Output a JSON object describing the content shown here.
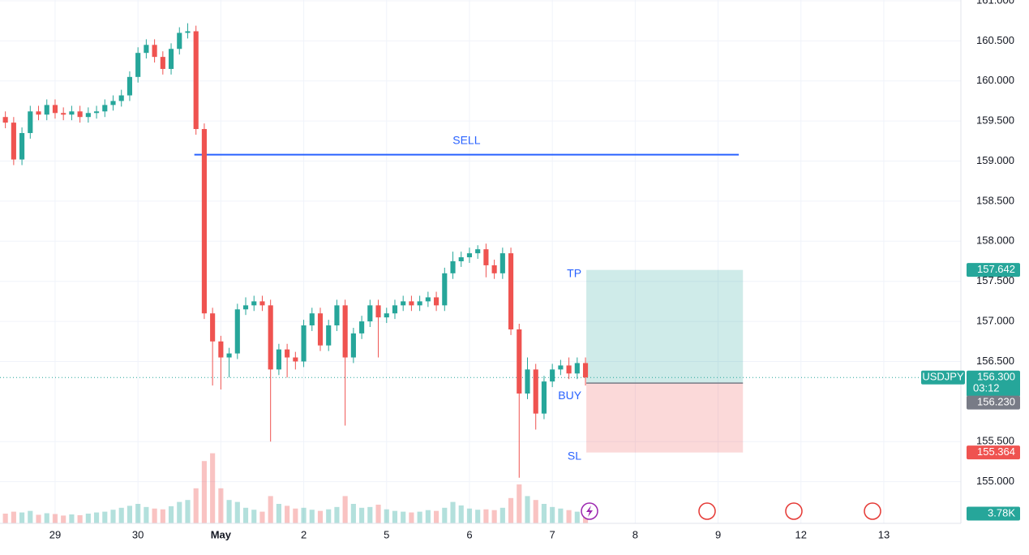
{
  "chart_data": {
    "type": "candlestick",
    "x": [
      -0.6,
      -0.5,
      -0.4,
      -0.3,
      -0.2,
      -0.1,
      0.0,
      0.1,
      0.2,
      0.3,
      0.4,
      0.5,
      0.6,
      0.7,
      0.8,
      0.9,
      1.0,
      1.1,
      1.2,
      1.3,
      1.4,
      1.5,
      1.6,
      1.7,
      1.8,
      1.9,
      2.0,
      2.1,
      2.2,
      2.3,
      2.4,
      2.5,
      2.6,
      2.7,
      2.8,
      2.9,
      3.0,
      3.1,
      3.2,
      3.3,
      3.4,
      3.5,
      3.6,
      3.7,
      3.8,
      3.9,
      4.0,
      4.1,
      4.2,
      4.3,
      4.4,
      4.5,
      4.6,
      4.7,
      4.8,
      4.9,
      5.0,
      5.1,
      5.2,
      5.3,
      5.4,
      5.5,
      5.6,
      5.7,
      5.8,
      5.9,
      6.0,
      6.1,
      6.2,
      6.3,
      6.4
    ],
    "open": [
      159.55,
      159.48,
      159.02,
      159.35,
      159.62,
      159.58,
      159.7,
      159.6,
      159.58,
      159.62,
      159.55,
      159.6,
      159.62,
      159.7,
      159.75,
      159.82,
      160.05,
      160.35,
      160.45,
      160.3,
      160.15,
      160.4,
      160.6,
      160.62,
      159.4,
      157.1,
      156.75,
      156.55,
      156.6,
      157.15,
      157.2,
      157.25,
      157.2,
      156.4,
      156.65,
      156.55,
      156.5,
      156.95,
      157.1,
      156.7,
      156.95,
      157.2,
      156.55,
      156.85,
      157.0,
      157.2,
      157.05,
      157.1,
      157.2,
      157.25,
      157.2,
      157.25,
      157.3,
      157.2,
      157.6,
      157.75,
      157.8,
      157.85,
      157.9,
      157.7,
      157.6,
      157.85,
      156.9,
      156.1,
      156.4,
      155.85,
      156.25,
      156.4,
      156.45,
      156.35,
      156.48
    ],
    "high": [
      159.62,
      159.55,
      159.42,
      159.69,
      159.69,
      159.77,
      159.77,
      159.67,
      159.69,
      159.69,
      159.67,
      159.69,
      159.77,
      159.82,
      159.89,
      160.12,
      160.42,
      160.52,
      160.52,
      160.37,
      160.47,
      160.67,
      160.72,
      160.69,
      159.47,
      157.17,
      156.82,
      156.67,
      157.22,
      157.3,
      157.32,
      157.32,
      157.27,
      156.72,
      156.72,
      156.62,
      157.02,
      157.17,
      157.17,
      157.02,
      157.27,
      157.27,
      156.92,
      157.07,
      157.27,
      157.27,
      157.17,
      157.27,
      157.32,
      157.32,
      157.32,
      157.37,
      157.37,
      157.67,
      157.87,
      157.87,
      157.92,
      157.95,
      157.97,
      157.77,
      157.92,
      157.92,
      156.97,
      156.55,
      156.47,
      156.32,
      156.47,
      156.52,
      156.55,
      156.55,
      156.55
    ],
    "low": [
      159.41,
      158.95,
      158.95,
      159.28,
      159.51,
      159.51,
      159.53,
      159.51,
      159.51,
      159.48,
      159.48,
      159.53,
      159.55,
      159.63,
      159.68,
      159.75,
      159.98,
      160.28,
      160.23,
      160.08,
      160.08,
      160.33,
      160.53,
      159.33,
      157.03,
      156.2,
      156.15,
      156.3,
      156.53,
      157.08,
      157.13,
      157.13,
      155.5,
      156.33,
      156.3,
      156.4,
      156.43,
      156.88,
      156.63,
      156.63,
      156.88,
      155.7,
      156.48,
      156.78,
      156.93,
      156.55,
      156.98,
      157.03,
      157.13,
      157.13,
      157.13,
      157.18,
      157.13,
      157.13,
      157.53,
      157.68,
      157.73,
      157.78,
      157.55,
      157.53,
      157.53,
      156.83,
      155.05,
      156.03,
      155.65,
      155.78,
      156.18,
      156.33,
      156.28,
      156.28,
      156.2
    ],
    "close": [
      159.48,
      159.02,
      159.35,
      159.62,
      159.58,
      159.7,
      159.6,
      159.58,
      159.62,
      159.55,
      159.6,
      159.62,
      159.7,
      159.75,
      159.82,
      160.05,
      160.35,
      160.45,
      160.3,
      160.15,
      160.4,
      160.6,
      160.62,
      159.4,
      157.1,
      156.75,
      156.55,
      156.6,
      157.15,
      157.2,
      157.25,
      157.2,
      156.4,
      156.65,
      156.55,
      156.5,
      156.95,
      157.1,
      156.7,
      156.95,
      157.2,
      156.55,
      156.85,
      157.0,
      157.2,
      157.05,
      157.1,
      157.2,
      157.25,
      157.2,
      157.25,
      157.3,
      157.2,
      157.6,
      157.75,
      157.8,
      157.85,
      157.9,
      157.7,
      157.6,
      157.85,
      156.9,
      156.1,
      156.4,
      155.85,
      156.25,
      156.4,
      156.45,
      156.35,
      156.48,
      156.3
    ],
    "volume": [
      2.5,
      3,
      2.8,
      3.2,
      2.2,
      2.6,
      2.4,
      2.0,
      2.3,
      2.1,
      2.5,
      2.8,
      3.0,
      3.5,
      4.0,
      4.5,
      5.0,
      4.2,
      3.8,
      3.6,
      4.4,
      5.5,
      6.0,
      9.0,
      16.0,
      18.0,
      9.0,
      6.0,
      5.5,
      4.0,
      3.5,
      3.0,
      7.0,
      5.0,
      4.5,
      3.8,
      4.0,
      3.5,
      3.2,
      3.6,
      4.2,
      7.0,
      5.0,
      4.0,
      4.2,
      4.8,
      3.6,
      3.2,
      3.0,
      2.8,
      3.0,
      3.4,
      3.2,
      4.0,
      5.5,
      4.6,
      3.8,
      3.5,
      3.6,
      3.4,
      4.0,
      6.5,
      10.0,
      7.0,
      6.0,
      5.0,
      4.2,
      3.8,
      3.4,
      3.0,
      3.78
    ],
    "volume_ylim": [
      0,
      25
    ],
    "volume_last": {
      "value": 3.78,
      "label": "3.78K"
    },
    "up_color": "#26a69a",
    "down_color": "#ef5350",
    "xlim": [
      -0.665,
      10.93
    ],
    "ylim": [
      154.48,
      161.01
    ],
    "xticks": [
      {
        "value": 0,
        "label": "29"
      },
      {
        "value": 1,
        "label": "30"
      },
      {
        "value": 2,
        "label": "May"
      },
      {
        "value": 3,
        "label": "2"
      },
      {
        "value": 4,
        "label": "5"
      },
      {
        "value": 5,
        "label": "6"
      },
      {
        "value": 6,
        "label": "7"
      },
      {
        "value": 7,
        "label": "8"
      },
      {
        "value": 8,
        "label": "9"
      },
      {
        "value": 9,
        "label": "12"
      },
      {
        "value": 10,
        "label": "13"
      }
    ],
    "yticks": [
      {
        "value": 155,
        "label": "155.000"
      },
      {
        "value": 155.5,
        "label": "155.500"
      },
      {
        "value": 156.5,
        "label": "156.500"
      },
      {
        "value": 157,
        "label": "157.000"
      },
      {
        "value": 157.5,
        "label": "157.500"
      },
      {
        "value": 158,
        "label": "158.000"
      },
      {
        "value": 158.5,
        "label": "158.500"
      },
      {
        "value": 159,
        "label": "159.000"
      },
      {
        "value": 159.5,
        "label": "159.500"
      },
      {
        "value": 160,
        "label": "160.000"
      },
      {
        "value": 160.5,
        "label": "160.500"
      },
      {
        "value": 161,
        "label": "161.000"
      }
    ],
    "grid": true,
    "sell_line": {
      "label": "SELL",
      "value": 159.08,
      "x_start": 1.68,
      "x_end": 8.25,
      "color": "#2962ff"
    },
    "position": {
      "x_start": 6.41,
      "x_end": 8.3,
      "take_profit": {
        "value": 157.642,
        "label": "157.642"
      },
      "tp_text": "TP",
      "entry": {
        "value": 156.23,
        "label": "156.230"
      },
      "entry_text": "BUY",
      "stop_loss": {
        "value": 155.364,
        "label": "155.364"
      },
      "sl_text": "SL"
    },
    "last_price": {
      "value": 156.3,
      "label": "156.300"
    },
    "symbol": "USDJPY",
    "countdown": "03:12"
  }
}
